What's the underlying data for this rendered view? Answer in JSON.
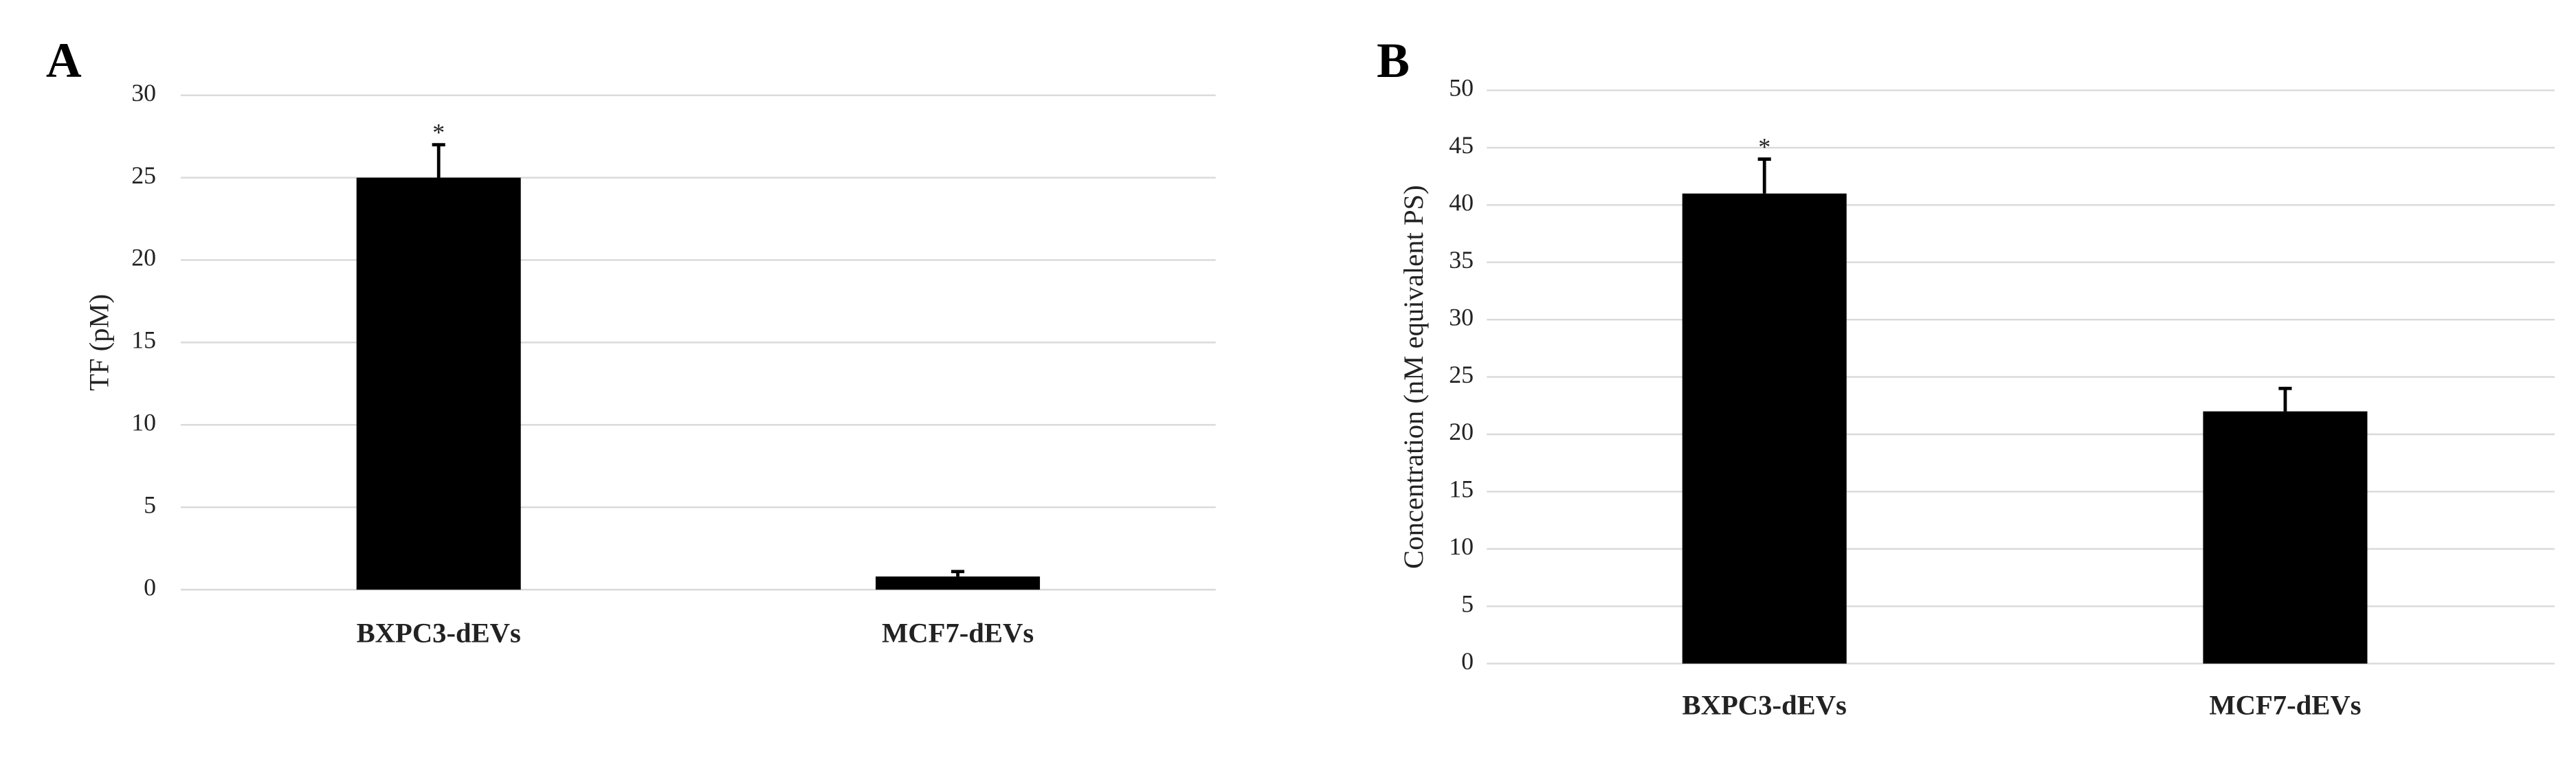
{
  "chart_data": [
    {
      "type": "bar",
      "panel_label": "A",
      "ylabel": "TF (pM)",
      "categories": [
        "BXPC3-dEVs",
        "MCF7-dEVs"
      ],
      "values": [
        25,
        0.8
      ],
      "errors": [
        2,
        0.3
      ],
      "significance": [
        "*",
        null
      ],
      "color": "#000000",
      "ylim": [
        0,
        30
      ],
      "yticks": [
        0,
        5,
        10,
        15,
        20,
        25,
        30
      ],
      "grid": true
    },
    {
      "type": "bar",
      "panel_label": "B",
      "ylabel": "Concentration (nM equivalent PS)",
      "categories": [
        "BXPC3-dEVs",
        "MCF7-dEVs"
      ],
      "values": [
        41,
        22
      ],
      "errors": [
        3,
        2
      ],
      "significance": [
        "*",
        null
      ],
      "color": "#000000",
      "ylim": [
        0,
        50
      ],
      "yticks": [
        0,
        5,
        10,
        15,
        20,
        25,
        30,
        35,
        40,
        45,
        50
      ],
      "grid": true
    }
  ]
}
